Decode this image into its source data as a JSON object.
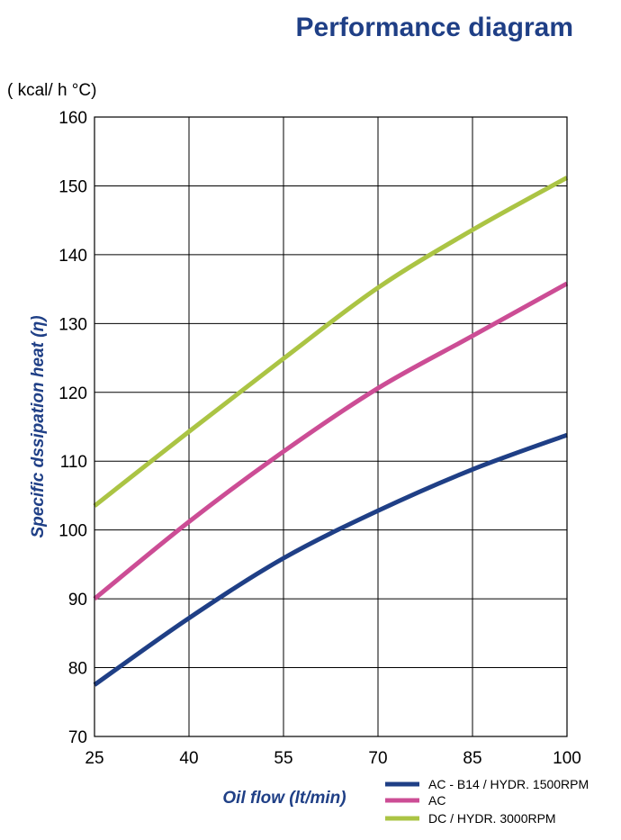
{
  "chart_data": {
    "type": "line",
    "title": "Performance diagram",
    "unit_label": "( kcal/ h °C)",
    "ylabel": "Specific  dssipation heat (η)",
    "xlabel": "Oil  flow  (lt/min)",
    "x_ticks": [
      "25",
      "40",
      "55",
      "70",
      "85",
      "100"
    ],
    "y_ticks": [
      "70",
      "80",
      "90",
      "100",
      "110",
      "120",
      "130",
      "140",
      "150",
      "160"
    ],
    "x": [
      25,
      40,
      55,
      70,
      85,
      100
    ],
    "ylim": [
      70,
      160
    ],
    "grid": true,
    "legend_position": "bottom-right",
    "series": [
      {
        "name": "AC - B14 / HYDR. 1500RPM",
        "color": "#1f3f86",
        "values": [
          77.5,
          87.2,
          95.9,
          102.8,
          108.8,
          113.8
        ]
      },
      {
        "name": "AC",
        "color": "#cc4d95",
        "values": [
          90,
          101.2,
          111.4,
          120.6,
          128.2,
          135.8
        ]
      },
      {
        "name": "DC / HYDR. 3000RPM",
        "color": "#abc444",
        "values": [
          103.5,
          114.3,
          124.9,
          135.2,
          143.6,
          151.2
        ]
      }
    ]
  }
}
